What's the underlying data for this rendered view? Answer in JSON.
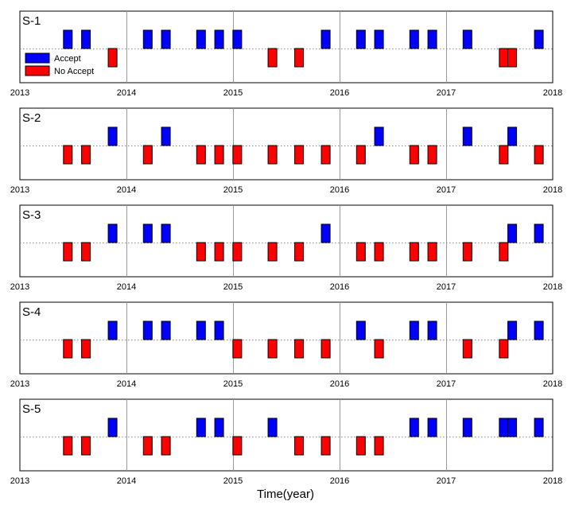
{
  "chart_data": {
    "type": "event-timeline",
    "xlabel": "Time(year)",
    "xlim": [
      2013.0,
      2018.0
    ],
    "xticks": [
      2013,
      2014,
      2015,
      2016,
      2017,
      2018
    ],
    "xtick_labels": [
      "2013",
      "2014",
      "2015",
      "2016",
      "2017",
      "2018"
    ],
    "grid": true,
    "legend": {
      "placement": "top-left",
      "entries": [
        {
          "label": "Accept",
          "color": "#0000ff"
        },
        {
          "label": "No Accept",
          "color": "#ff0000"
        }
      ]
    },
    "panels": [
      {
        "title": "S-1",
        "accept": [
          2013.45,
          2013.62,
          2014.2,
          2014.37,
          2014.7,
          2014.87,
          2015.04,
          2015.87,
          2016.2,
          2016.37,
          2016.7,
          2016.87,
          2017.2,
          2017.87
        ],
        "no_accept": [
          2013.87,
          2015.37,
          2015.62,
          2017.54,
          2017.62
        ]
      },
      {
        "title": "S-2",
        "accept": [
          2013.87,
          2014.37,
          2016.37,
          2017.2,
          2017.62
        ],
        "no_accept": [
          2013.45,
          2013.62,
          2014.2,
          2014.7,
          2014.87,
          2015.04,
          2015.37,
          2015.62,
          2015.87,
          2016.2,
          2016.7,
          2016.87,
          2017.54,
          2017.87
        ]
      },
      {
        "title": "S-3",
        "accept": [
          2013.87,
          2014.2,
          2014.37,
          2015.87,
          2017.62,
          2017.87
        ],
        "no_accept": [
          2013.45,
          2013.62,
          2014.7,
          2014.87,
          2015.04,
          2015.37,
          2015.62,
          2016.2,
          2016.37,
          2016.7,
          2016.87,
          2017.2,
          2017.54
        ]
      },
      {
        "title": "S-4",
        "accept": [
          2013.87,
          2014.2,
          2014.37,
          2014.7,
          2014.87,
          2016.2,
          2016.7,
          2016.87,
          2017.62,
          2017.87
        ],
        "no_accept": [
          2013.45,
          2013.62,
          2015.04,
          2015.37,
          2015.62,
          2015.87,
          2016.37,
          2017.2,
          2017.54
        ]
      },
      {
        "title": "S-5",
        "accept": [
          2013.87,
          2014.7,
          2014.87,
          2015.37,
          2016.7,
          2016.87,
          2017.2,
          2017.54,
          2017.62,
          2017.87
        ],
        "no_accept": [
          2013.45,
          2013.62,
          2014.2,
          2014.37,
          2015.04,
          2015.62,
          2015.87,
          2016.2,
          2016.37
        ]
      }
    ]
  }
}
